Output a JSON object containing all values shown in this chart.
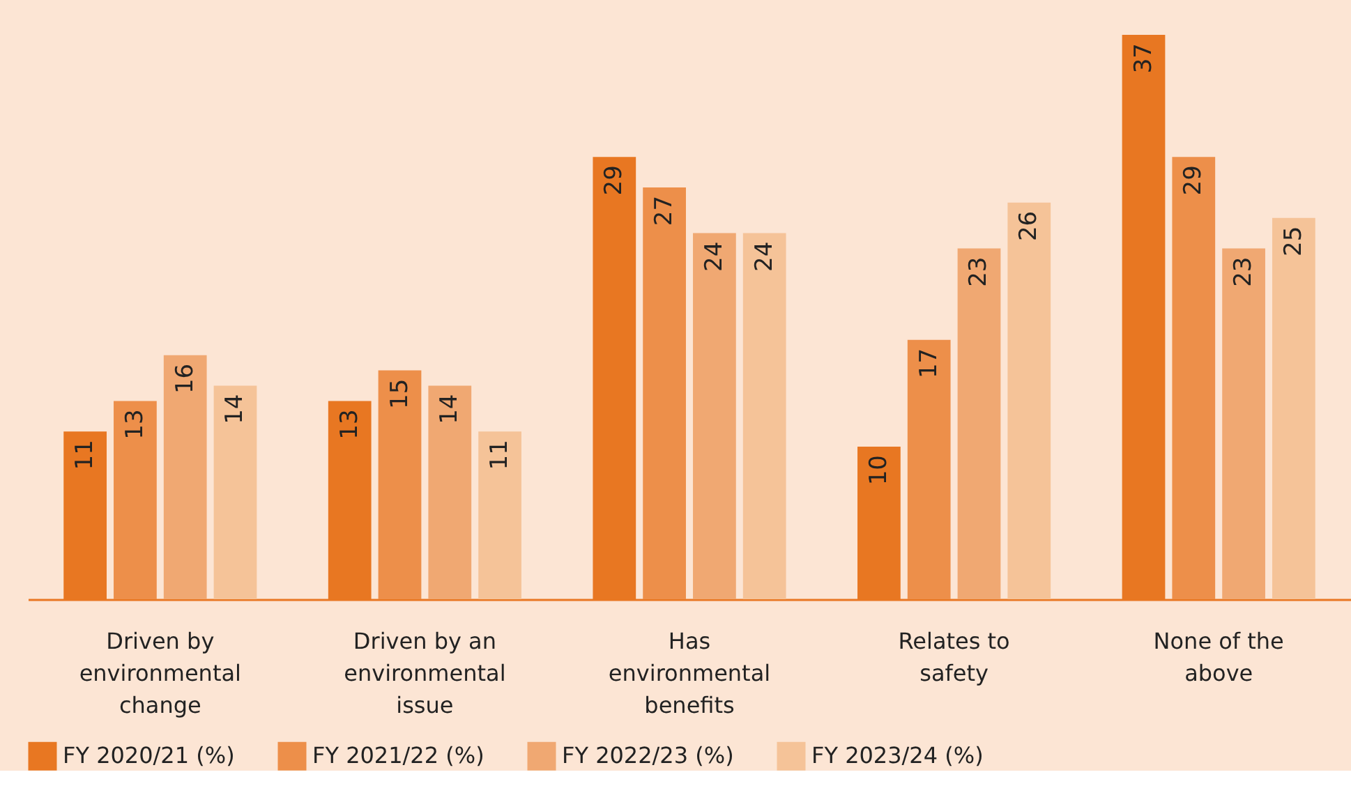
{
  "chart_data": {
    "type": "bar",
    "categories": [
      "Driven by environmental change",
      "Driven by an environmental issue",
      "Has environmental benefits",
      "Relates to safety",
      "None of the above"
    ],
    "series": [
      {
        "name": "FY 2020/21 (%)",
        "color": "#e87722",
        "values": [
          11,
          13,
          29,
          10,
          37
        ]
      },
      {
        "name": "FY 2021/22 (%)",
        "color": "#ed8f4a",
        "values": [
          13,
          15,
          27,
          17,
          29
        ]
      },
      {
        "name": "FY 2022/23 (%)",
        "color": "#f0a872",
        "values": [
          16,
          14,
          24,
          23,
          23
        ]
      },
      {
        "name": "FY 2023/24 (%)",
        "color": "#f5c398",
        "values": [
          14,
          11,
          24,
          26,
          25
        ]
      }
    ],
    "data_labels": true,
    "legend": "bottom",
    "grid": false
  }
}
